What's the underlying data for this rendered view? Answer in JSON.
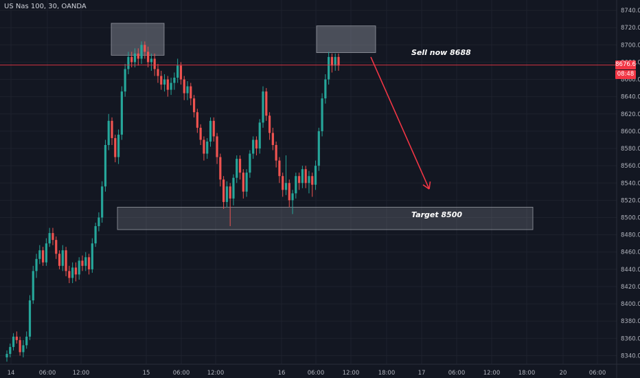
{
  "chart_data": {
    "type": "candlestick",
    "title": "US Nas 100, 30, OANDA",
    "y_axis": {
      "range": [
        8330,
        8752
      ],
      "ticks": [
        8740,
        8720,
        8700,
        8680,
        8660,
        8640,
        8620,
        8600,
        8580,
        8560,
        8540,
        8520,
        8500,
        8480,
        8460,
        8440,
        8420,
        8400,
        8380,
        8360,
        8340
      ]
    },
    "x_axis": {
      "ticks": [
        "14",
        "06:00",
        "12:00",
        "15",
        "06:00",
        "12:00",
        "16",
        "06:00",
        "12:00",
        "18:00",
        "17",
        "06:00",
        "12:00",
        "18:00",
        "20",
        "06:00"
      ]
    },
    "last_price": {
      "value": 8676.6,
      "label": "8676.6",
      "countdown": "08:48",
      "color": "#f23645"
    },
    "zones": [
      {
        "name": "resistance-zone-1",
        "high": 8725,
        "low": 8688
      },
      {
        "name": "resistance-zone-2",
        "high": 8722,
        "low": 8691
      },
      {
        "name": "target-zone",
        "high": 8512,
        "low": 8486
      }
    ],
    "annotations": [
      {
        "name": "sell-note",
        "text": "Sell now 8688",
        "price": 8690
      },
      {
        "name": "target-note",
        "text": "Target 8500",
        "price": 8502
      }
    ],
    "arrow": {
      "from_price": 8686,
      "to_price": 8533,
      "color": "#f23645"
    },
    "colors": {
      "up": "#26a69a",
      "down": "#ef5350",
      "background": "#131722",
      "grid": "#1e222d",
      "zone": "#787b86"
    },
    "candles": [
      [
        8338,
        8342,
        8333,
        8346
      ],
      [
        8342,
        8350,
        8338,
        8354
      ],
      [
        8350,
        8362,
        8346,
        8366
      ],
      [
        8362,
        8358,
        8354,
        8368
      ],
      [
        8358,
        8344,
        8340,
        8362
      ],
      [
        8344,
        8352,
        8338,
        8358
      ],
      [
        8352,
        8362,
        8348,
        8368
      ],
      [
        8362,
        8404,
        8358,
        8410
      ],
      [
        8404,
        8438,
        8400,
        8444
      ],
      [
        8438,
        8452,
        8430,
        8458
      ],
      [
        8452,
        8462,
        8446,
        8468
      ],
      [
        8462,
        8448,
        8444,
        8466
      ],
      [
        8448,
        8470,
        8444,
        8476
      ],
      [
        8470,
        8482,
        8466,
        8488
      ],
      [
        8482,
        8474,
        8468,
        8488
      ],
      [
        8474,
        8458,
        8452,
        8478
      ],
      [
        8458,
        8444,
        8440,
        8462
      ],
      [
        8444,
        8462,
        8438,
        8468
      ],
      [
        8462,
        8438,
        8432,
        8466
      ],
      [
        8438,
        8430,
        8424,
        8444
      ],
      [
        8430,
        8442,
        8424,
        8448
      ],
      [
        8442,
        8434,
        8426,
        8448
      ],
      [
        8434,
        8450,
        8428,
        8454
      ],
      [
        8450,
        8444,
        8438,
        8456
      ],
      [
        8444,
        8454,
        8438,
        8460
      ],
      [
        8454,
        8440,
        8434,
        8458
      ],
      [
        8440,
        8470,
        8436,
        8476
      ],
      [
        8470,
        8490,
        8466,
        8494
      ],
      [
        8490,
        8500,
        8484,
        8506
      ],
      [
        8500,
        8536,
        8494,
        8542
      ],
      [
        8536,
        8584,
        8530,
        8590
      ],
      [
        8584,
        8612,
        8578,
        8620
      ],
      [
        8612,
        8592,
        8584,
        8616
      ],
      [
        8592,
        8570,
        8564,
        8596
      ],
      [
        8570,
        8596,
        8562,
        8602
      ],
      [
        8596,
        8646,
        8590,
        8652
      ],
      [
        8646,
        8672,
        8640,
        8678
      ],
      [
        8672,
        8686,
        8666,
        8692
      ],
      [
        8686,
        8680,
        8674,
        8692
      ],
      [
        8680,
        8690,
        8674,
        8696
      ],
      [
        8690,
        8684,
        8676,
        8696
      ],
      [
        8684,
        8700,
        8678,
        8704
      ],
      [
        8700,
        8692,
        8684,
        8704
      ],
      [
        8692,
        8680,
        8674,
        8698
      ],
      [
        8680,
        8684,
        8670,
        8690
      ],
      [
        8684,
        8672,
        8664,
        8690
      ],
      [
        8672,
        8664,
        8656,
        8678
      ],
      [
        8664,
        8654,
        8648,
        8670
      ],
      [
        8654,
        8660,
        8646,
        8666
      ],
      [
        8660,
        8648,
        8640,
        8664
      ],
      [
        8648,
        8656,
        8642,
        8662
      ],
      [
        8656,
        8662,
        8648,
        8668
      ],
      [
        8662,
        8676,
        8656,
        8684
      ],
      [
        8676,
        8660,
        8654,
        8680
      ],
      [
        8660,
        8644,
        8636,
        8664
      ],
      [
        8644,
        8652,
        8636,
        8658
      ],
      [
        8652,
        8638,
        8630,
        8656
      ],
      [
        8638,
        8622,
        8616,
        8642
      ],
      [
        8622,
        8604,
        8598,
        8626
      ],
      [
        8604,
        8590,
        8584,
        8608
      ],
      [
        8590,
        8574,
        8566,
        8594
      ],
      [
        8574,
        8588,
        8568,
        8592
      ],
      [
        8588,
        8612,
        8582,
        8616
      ],
      [
        8612,
        8594,
        8588,
        8616
      ],
      [
        8594,
        8570,
        8562,
        8598
      ],
      [
        8570,
        8544,
        8536,
        8574
      ],
      [
        8544,
        8518,
        8510,
        8548
      ],
      [
        8518,
        8536,
        8512,
        8542
      ],
      [
        8536,
        8522,
        8490,
        8540
      ],
      [
        8522,
        8546,
        8514,
        8550
      ],
      [
        8546,
        8568,
        8540,
        8572
      ],
      [
        8568,
        8552,
        8544,
        8572
      ],
      [
        8552,
        8530,
        8522,
        8556
      ],
      [
        8530,
        8552,
        8524,
        8556
      ],
      [
        8552,
        8574,
        8546,
        8578
      ],
      [
        8574,
        8590,
        8568,
        8594
      ],
      [
        8590,
        8580,
        8572,
        8594
      ],
      [
        8580,
        8610,
        8574,
        8614
      ],
      [
        8610,
        8646,
        8604,
        8652
      ],
      [
        8646,
        8618,
        8612,
        8650
      ],
      [
        8618,
        8598,
        8590,
        8622
      ],
      [
        8598,
        8584,
        8578,
        8604
      ],
      [
        8584,
        8566,
        8558,
        8588
      ],
      [
        8566,
        8548,
        8540,
        8570
      ],
      [
        8548,
        8532,
        8524,
        8552
      ],
      [
        8532,
        8540,
        8526,
        8572
      ],
      [
        8540,
        8520,
        8512,
        8544
      ],
      [
        8520,
        8528,
        8504,
        8532
      ],
      [
        8528,
        8548,
        8522,
        8552
      ],
      [
        8548,
        8540,
        8532,
        8552
      ],
      [
        8540,
        8556,
        8534,
        8560
      ],
      [
        8556,
        8540,
        8534,
        8560
      ],
      [
        8540,
        8548,
        8528,
        8554
      ],
      [
        8548,
        8538,
        8524,
        8552
      ],
      [
        8538,
        8560,
        8532,
        8566
      ],
      [
        8560,
        8600,
        8554,
        8604
      ],
      [
        8600,
        8638,
        8594,
        8644
      ],
      [
        8638,
        8660,
        8632,
        8666
      ],
      [
        8660,
        8686,
        8654,
        8692
      ],
      [
        8686,
        8676,
        8668,
        8690
      ],
      [
        8676,
        8686,
        8670,
        8690
      ],
      [
        8686,
        8676,
        8670,
        8690
      ]
    ]
  }
}
